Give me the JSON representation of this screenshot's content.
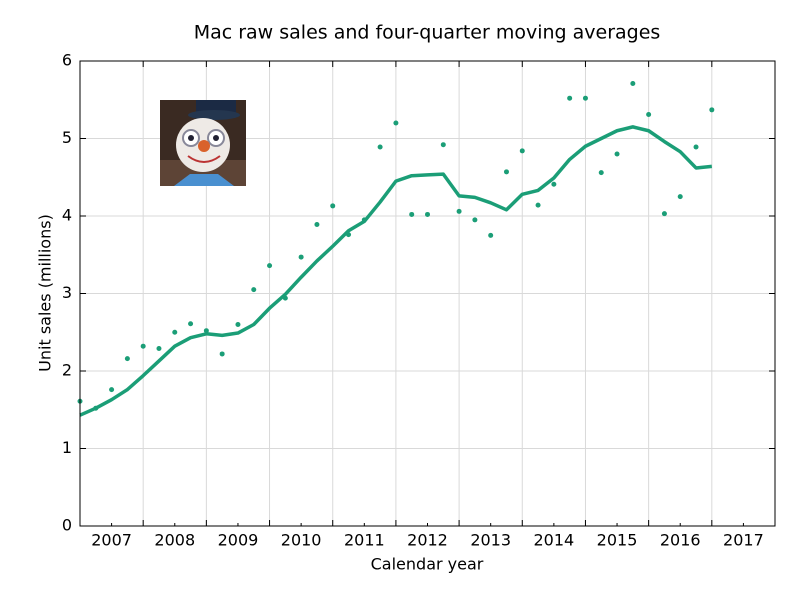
{
  "chart_data": {
    "type": "scatter-line",
    "title": "Mac raw sales and four-quarter moving averages",
    "xlabel": "Calendar year",
    "ylabel": "Unit sales (millions)",
    "xlim": [
      2007,
      2018
    ],
    "ylim": [
      0,
      6
    ],
    "yticks": [
      0,
      1,
      2,
      3,
      4,
      5,
      6
    ],
    "xticks": [
      {
        "value": 2007.5,
        "label": "2007"
      },
      {
        "value": 2008.5,
        "label": "2008"
      },
      {
        "value": 2009.5,
        "label": "2009"
      },
      {
        "value": 2010.5,
        "label": "2010"
      },
      {
        "value": 2011.5,
        "label": "2011"
      },
      {
        "value": 2012.5,
        "label": "2012"
      },
      {
        "value": 2013.5,
        "label": "2013"
      },
      {
        "value": 2014.5,
        "label": "2014"
      },
      {
        "value": 2015.5,
        "label": "2015"
      },
      {
        "value": 2016.5,
        "label": "2016"
      },
      {
        "value": 2017.5,
        "label": "2017"
      }
    ],
    "xgrid": [
      2008,
      2009,
      2010,
      2011,
      2012,
      2013,
      2014,
      2015,
      2016,
      2017
    ],
    "grid": true,
    "x": [
      2007,
      2007.25,
      2007.5,
      2007.75,
      2008,
      2008.25,
      2008.5,
      2008.75,
      2009,
      2009.25,
      2009.5,
      2009.75,
      2010,
      2010.25,
      2010.5,
      2010.75,
      2011,
      2011.25,
      2011.5,
      2011.75,
      2012,
      2012.25,
      2012.5,
      2012.75,
      2013,
      2013.25,
      2013.5,
      2013.75,
      2014,
      2014.25,
      2014.5,
      2014.75,
      2015,
      2015.25,
      2015.5,
      2015.75,
      2016,
      2016.25,
      2016.5,
      2016.75,
      2017
    ],
    "series": [
      {
        "style": "dots",
        "color": "#1b9e77",
        "values": [
          1.61,
          1.52,
          1.76,
          2.16,
          2.32,
          2.29,
          2.5,
          2.61,
          2.52,
          2.22,
          2.6,
          3.05,
          3.36,
          2.94,
          3.47,
          3.89,
          4.13,
          3.76,
          3.95,
          4.89,
          5.2,
          4.02,
          4.02,
          4.92,
          4.06,
          3.95,
          3.75,
          4.57,
          4.84,
          4.14,
          4.41,
          5.52,
          5.52,
          4.56,
          4.8,
          5.71,
          5.31,
          4.03,
          4.25,
          4.89,
          5.37
        ]
      },
      {
        "style": "line",
        "color": "#1b9e77",
        "values": [
          1.43,
          1.52,
          1.63,
          1.76,
          1.94,
          2.13,
          2.32,
          2.43,
          2.48,
          2.46,
          2.49,
          2.6,
          2.81,
          2.99,
          3.21,
          3.42,
          3.61,
          3.81,
          3.93,
          4.18,
          4.45,
          4.52,
          4.53,
          4.54,
          4.26,
          4.24,
          4.17,
          4.08,
          4.28,
          4.33,
          4.49,
          4.73,
          4.9,
          5.0,
          5.1,
          5.15,
          5.1,
          4.96,
          4.83,
          4.62,
          4.64
        ]
      }
    ]
  }
}
